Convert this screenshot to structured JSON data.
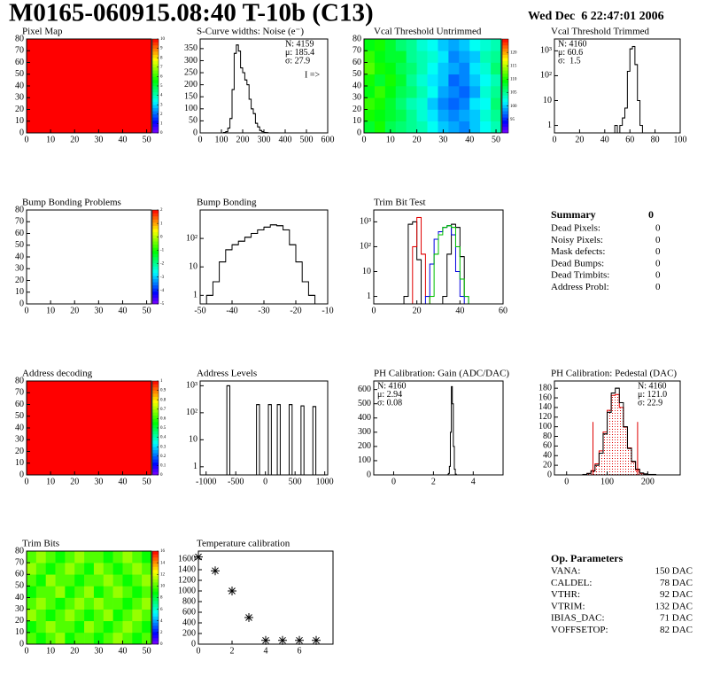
{
  "header": {
    "title": "M0165-060915.08:40 T-10b (C13)",
    "date": "Wed Dec  6 22:47:01 2006"
  },
  "chart_data": [
    {
      "type": "heatmap",
      "title": "Pixel Map",
      "xlim": [
        0,
        52
      ],
      "ylim": [
        0,
        80
      ],
      "xticks": [
        0,
        10,
        20,
        30,
        40,
        50
      ],
      "yticks": [
        0,
        10,
        20,
        30,
        40,
        50,
        60,
        70,
        80
      ],
      "zlim": [
        0,
        10
      ],
      "zticks": [
        0,
        1,
        2,
        3,
        4,
        5,
        6,
        7,
        8,
        9,
        10
      ],
      "xbins": [
        0,
        52
      ],
      "ybins": [
        0,
        80
      ],
      "z": [
        [
          10
        ]
      ]
    },
    {
      "type": "histogram",
      "title": "S-Curve widths: Noise (e⁻)",
      "xlim": [
        0,
        600
      ],
      "ylim": [
        0,
        390
      ],
      "xticks": [
        0,
        100,
        200,
        300,
        400,
        500,
        600
      ],
      "yticks": [
        0,
        50,
        100,
        150,
        200,
        250,
        300,
        350
      ],
      "bins": [
        110,
        120,
        130,
        140,
        150,
        160,
        170,
        180,
        190,
        200,
        210,
        220,
        230,
        240,
        250,
        260,
        270,
        280,
        290,
        300,
        310,
        320
      ],
      "series": [
        {
          "color": "#000000",
          "values": [
            2,
            5,
            20,
            60,
            180,
            330,
            365,
            340,
            270,
            250,
            220,
            200,
            140,
            100,
            80,
            40,
            25,
            10,
            5,
            2,
            1
          ]
        }
      ],
      "stats_corner": "top-right",
      "stats": [
        {
          "text": "N: 4159",
          "color": "#000000"
        },
        {
          "text": "μ: 185.4",
          "color": "#000000"
        },
        {
          "text": "σ: 27.9",
          "color": "#000000"
        }
      ],
      "annotation": "I =>"
    },
    {
      "type": "heatmap",
      "title": "Vcal Threshold Untrimmed",
      "xlim": [
        0,
        52
      ],
      "ylim": [
        0,
        80
      ],
      "xticks": [
        0,
        10,
        20,
        30,
        40,
        50
      ],
      "yticks": [
        0,
        10,
        20,
        30,
        40,
        50,
        60,
        70,
        80
      ],
      "zlim": [
        90,
        125
      ],
      "zticks": [
        95,
        100,
        105,
        110,
        115,
        120
      ],
      "xbins": [
        0,
        4,
        8,
        12,
        16,
        20,
        24,
        28,
        32,
        36,
        40,
        44,
        48,
        52
      ],
      "ybins": [
        0,
        10,
        20,
        30,
        40,
        50,
        60,
        70,
        80
      ],
      "z": [
        [
          108,
          110,
          107,
          106,
          105,
          104,
          102,
          100,
          99,
          98,
          100,
          102,
          104
        ],
        [
          110,
          109,
          108,
          107,
          105,
          103,
          101,
          99,
          98,
          99,
          100,
          103,
          105
        ],
        [
          111,
          110,
          108,
          106,
          104,
          103,
          100,
          98,
          97,
          98,
          101,
          102,
          106
        ],
        [
          109,
          111,
          109,
          107,
          106,
          104,
          102,
          99,
          98,
          97,
          99,
          103,
          105
        ],
        [
          110,
          108,
          110,
          108,
          105,
          103,
          101,
          100,
          97,
          98,
          100,
          102,
          104
        ],
        [
          112,
          110,
          109,
          107,
          106,
          104,
          102,
          100,
          99,
          98,
          101,
          103,
          106
        ],
        [
          111,
          109,
          108,
          108,
          105,
          104,
          103,
          101,
          98,
          99,
          100,
          104,
          105
        ],
        [
          109,
          110,
          108,
          106,
          105,
          103,
          102,
          100,
          99,
          100,
          102,
          103,
          104
        ]
      ]
    },
    {
      "type": "histogram",
      "title": "Vcal Threshold Trimmed",
      "log_y": true,
      "xlim": [
        0,
        100
      ],
      "ylim": [
        0.5,
        3000
      ],
      "xticks": [
        0,
        20,
        40,
        60,
        80,
        100
      ],
      "yticks": [
        1,
        10,
        {
          "value": 100,
          "label": "10²"
        },
        {
          "value": 1000,
          "label": "10³"
        }
      ],
      "bins": [
        48,
        50,
        52,
        54,
        56,
        58,
        60,
        62,
        64,
        66,
        68,
        70
      ],
      "series": [
        {
          "color": "#000000",
          "values": [
            1,
            0,
            1,
            2,
            5,
            150,
            1200,
            1500,
            280,
            10,
            1
          ]
        }
      ],
      "stats_corner": "top-left",
      "stats": [
        {
          "text": "N: 4160",
          "color": "#000000"
        },
        {
          "text": "μ: 60.6",
          "color": "#000000"
        },
        {
          "text": "σ:  1.5",
          "color": "#000000"
        }
      ]
    },
    {
      "type": "heatmap",
      "title": "Bump Bonding Problems",
      "xlim": [
        0,
        52
      ],
      "ylim": [
        0,
        80
      ],
      "xticks": [
        0,
        10,
        20,
        30,
        40,
        50
      ],
      "yticks": [
        0,
        10,
        20,
        30,
        40,
        50,
        60,
        70,
        80
      ],
      "zlim": [
        -5,
        2
      ],
      "zticks": [
        -5,
        -4,
        -3,
        -2,
        -1,
        0,
        1,
        2
      ]
    },
    {
      "type": "histogram",
      "title": "Bump Bonding",
      "log_y": true,
      "xlim": [
        -50,
        -10
      ],
      "ylim": [
        0.5,
        1000
      ],
      "xticks": [
        -50,
        -40,
        -30,
        -20,
        -10
      ],
      "yticks": [
        1,
        10,
        {
          "value": 100,
          "label": "10²"
        }
      ],
      "bins": [
        -48,
        -46,
        -44,
        -42,
        -40,
        -38,
        -36,
        -34,
        -32,
        -30,
        -28,
        -26,
        -24,
        -22,
        -20,
        -18,
        -16,
        -14
      ],
      "series": [
        {
          "color": "#000000",
          "values": [
            1,
            3,
            15,
            40,
            60,
            80,
            110,
            150,
            200,
            250,
            300,
            280,
            200,
            60,
            15,
            3,
            1
          ]
        }
      ]
    },
    {
      "type": "histogram",
      "title": "Trim Bit Test",
      "log_y": true,
      "xlim": [
        0,
        60
      ],
      "ylim": [
        0.5,
        3000
      ],
      "xticks": [
        0,
        20,
        40,
        60
      ],
      "yticks": [
        1,
        10,
        {
          "value": 100,
          "label": "10²"
        },
        {
          "value": 1000,
          "label": "10³"
        }
      ],
      "bins": [
        12,
        14,
        16,
        18,
        20,
        22,
        24,
        26,
        28,
        30,
        32,
        34,
        36,
        38,
        40,
        42,
        44,
        46
      ],
      "series": [
        {
          "color": "#000000",
          "values": [
            0,
            1,
            800,
            1000,
            30,
            0,
            0,
            0,
            0,
            0,
            1,
            50,
            800,
            600,
            40,
            1,
            0
          ]
        },
        {
          "color": "#e00000",
          "values": [
            0,
            0,
            0,
            100,
            1500,
            50,
            1,
            0,
            0,
            0,
            0,
            0,
            0,
            0,
            0,
            0,
            0
          ]
        },
        {
          "color": "#0000e0",
          "values": [
            0,
            0,
            0,
            0,
            0,
            0,
            1,
            20,
            200,
            400,
            600,
            700,
            300,
            10,
            1,
            0,
            0
          ]
        },
        {
          "color": "#00c000",
          "values": [
            0,
            0,
            0,
            0,
            0,
            0,
            0,
            1,
            50,
            300,
            600,
            700,
            600,
            100,
            5,
            1,
            0
          ]
        }
      ]
    },
    {
      "type": "heatmap",
      "title": "Address decoding",
      "xlim": [
        0,
        52
      ],
      "ylim": [
        0,
        80
      ],
      "xticks": [
        0,
        10,
        20,
        30,
        40,
        50
      ],
      "yticks": [
        0,
        10,
        20,
        30,
        40,
        50,
        60,
        70,
        80
      ],
      "zlim": [
        0,
        1
      ],
      "zticks": [
        0,
        0.1,
        0.2,
        0.3,
        0.4,
        0.5,
        0.6,
        0.7,
        0.8,
        0.9,
        1
      ],
      "xbins": [
        0,
        52
      ],
      "ybins": [
        0,
        80
      ],
      "z": [
        [
          1
        ]
      ]
    },
    {
      "type": "histogram",
      "title": "Address Levels",
      "log_y": true,
      "xlim": [
        -1100,
        1050
      ],
      "ylim": [
        0.5,
        1500
      ],
      "xticks": [
        -1000,
        -500,
        0,
        500,
        1000
      ],
      "yticks": [
        1,
        10,
        {
          "value": 100,
          "label": "10²"
        },
        {
          "value": 1000,
          "label": "10³"
        }
      ],
      "bins": [
        -700,
        -650,
        -600,
        -550,
        -500,
        -450,
        -400,
        -350,
        -300,
        -250,
        -200,
        -150,
        -100,
        -50,
        0,
        50,
        100,
        150,
        200,
        250,
        300,
        350,
        400,
        450,
        500,
        550,
        600,
        650,
        700,
        750,
        800,
        850,
        900
      ],
      "series": [
        {
          "color": "#000000",
          "values": [
            0,
            1000,
            0,
            0,
            0,
            0,
            0,
            0,
            0,
            0,
            0,
            200,
            0,
            0,
            0,
            200,
            0,
            0,
            200,
            0,
            0,
            0,
            200,
            0,
            0,
            0,
            180,
            0,
            0,
            0,
            170,
            0
          ]
        }
      ]
    },
    {
      "type": "histogram",
      "title": "PH Calibration: Gain (ADC/DAC)",
      "xlim": [
        -1,
        5.5
      ],
      "ylim": [
        0,
        660
      ],
      "xticks": [
        0,
        2,
        4
      ],
      "yticks": [
        0,
        100,
        200,
        300,
        400,
        500,
        600
      ],
      "bins": [
        2.7,
        2.75,
        2.8,
        2.85,
        2.9,
        2.95,
        3,
        3.05,
        3.1,
        3.15
      ],
      "series": [
        {
          "color": "#000000",
          "values": [
            1,
            10,
            60,
            300,
            620,
            500,
            200,
            40,
            5
          ]
        }
      ],
      "stats_corner": "top-left",
      "stats": [
        {
          "text": "N: 4160",
          "color": "#000000"
        },
        {
          "text": "μ: 2.94",
          "color": "#000000"
        },
        {
          "text": "σ: 0.08",
          "color": "#000000"
        }
      ]
    },
    {
      "type": "histogram",
      "title": "PH Calibration: Pedestal (DAC)",
      "xlim": [
        -30,
        280
      ],
      "ylim": [
        0,
        195
      ],
      "xticks": [
        0,
        100,
        200
      ],
      "yticks": [
        0,
        20,
        40,
        60,
        80,
        100,
        120,
        140,
        160,
        180
      ],
      "bins": [
        40,
        50,
        60,
        70,
        80,
        90,
        100,
        110,
        120,
        130,
        140,
        150,
        160,
        170,
        180,
        190,
        200,
        210,
        220
      ],
      "series": [
        {
          "color": "#e00000",
          "fill": "dots",
          "values": [
            1,
            3,
            9,
            23,
            50,
            89,
            134,
            165,
            167,
            140,
            99,
            56,
            27,
            10,
            3,
            1,
            0,
            0
          ]
        },
        {
          "color": "#000000",
          "values": [
            1,
            3,
            8,
            20,
            45,
            85,
            130,
            170,
            180,
            150,
            100,
            55,
            28,
            12,
            4,
            2,
            1,
            1
          ]
        }
      ],
      "vlines": [
        {
          "x": 65,
          "y": 110
        },
        {
          "x": 175,
          "y": 110
        }
      ],
      "vline_color": "#e00000",
      "stats_corner": "top-right",
      "stats": [
        {
          "text": "N: 4160",
          "color": "#000000"
        },
        {
          "text": "μ: 121.0",
          "color": "#e00000"
        },
        {
          "text": "σ: 22.9",
          "color": "#e00000"
        }
      ]
    },
    {
      "type": "heatmap",
      "title": "Trim Bits",
      "xlim": [
        0,
        52
      ],
      "ylim": [
        0,
        80
      ],
      "xticks": [
        0,
        10,
        20,
        30,
        40,
        50
      ],
      "yticks": [
        0,
        10,
        20,
        30,
        40,
        50,
        60,
        70,
        80
      ],
      "zlim": [
        0,
        16
      ],
      "zticks": [
        0,
        2,
        4,
        6,
        8,
        10,
        12,
        14,
        16
      ],
      "xbins": [
        0,
        4,
        8,
        12,
        16,
        20,
        24,
        28,
        32,
        36,
        40,
        44,
        48,
        52
      ],
      "ybins": [
        0,
        10,
        20,
        30,
        40,
        50,
        60,
        70,
        80
      ],
      "z": [
        [
          10,
          9,
          10,
          11,
          9,
          10,
          10,
          9,
          10,
          11,
          10,
          9,
          10
        ],
        [
          9,
          10,
          11,
          10,
          10,
          9,
          11,
          10,
          9,
          10,
          11,
          10,
          9
        ],
        [
          11,
          10,
          9,
          10,
          11,
          10,
          9,
          10,
          11,
          9,
          10,
          11,
          10
        ],
        [
          10,
          11,
          10,
          9,
          10,
          11,
          10,
          11,
          10,
          10,
          9,
          10,
          11
        ],
        [
          9,
          10,
          10,
          11,
          9,
          10,
          11,
          9,
          10,
          11,
          10,
          9,
          10
        ],
        [
          10,
          9,
          11,
          10,
          10,
          9,
          10,
          10,
          11,
          10,
          9,
          10,
          11
        ],
        [
          11,
          10,
          9,
          10,
          11,
          10,
          9,
          11,
          10,
          9,
          10,
          11,
          10
        ],
        [
          10,
          11,
          10,
          9,
          10,
          11,
          10,
          10,
          9,
          10,
          11,
          10,
          9
        ]
      ]
    },
    {
      "type": "scatter",
      "title": "Temperature calibration",
      "xlim": [
        0,
        8
      ],
      "ylim": [
        0,
        1750
      ],
      "xticks": [
        0,
        2,
        4,
        6
      ],
      "yticks": [
        0,
        200,
        400,
        600,
        800,
        1000,
        1200,
        1400,
        1600
      ],
      "x": [
        0,
        1,
        2,
        3,
        4,
        5,
        6,
        7
      ],
      "values": [
        1640,
        1380,
        1000,
        500,
        70,
        70,
        70,
        70
      ],
      "color": "#000000"
    }
  ],
  "summary": {
    "title": "Summary",
    "total": 0,
    "rows": [
      {
        "label": "Dead Pixels:",
        "value": 0
      },
      {
        "label": "Noisy Pixels:",
        "value": 0
      },
      {
        "label": "Mask defects:",
        "value": 0
      },
      {
        "label": "Dead Bumps:",
        "value": 0
      },
      {
        "label": "Dead Trimbits:",
        "value": 0
      },
      {
        "label": "Address Probl:",
        "value": 0
      }
    ]
  },
  "op_parameters": {
    "title": "Op. Parameters",
    "rows": [
      {
        "label": "VANA:",
        "value": "150 DAC"
      },
      {
        "label": "CALDEL:",
        "value": "78 DAC"
      },
      {
        "label": "VTHR:",
        "value": "92 DAC"
      },
      {
        "label": "VTRIM:",
        "value": "132 DAC"
      },
      {
        "label": "IBIAS_DAC:",
        "value": "71 DAC"
      },
      {
        "label": "VOFFSETOP:",
        "value": "82 DAC"
      }
    ]
  }
}
